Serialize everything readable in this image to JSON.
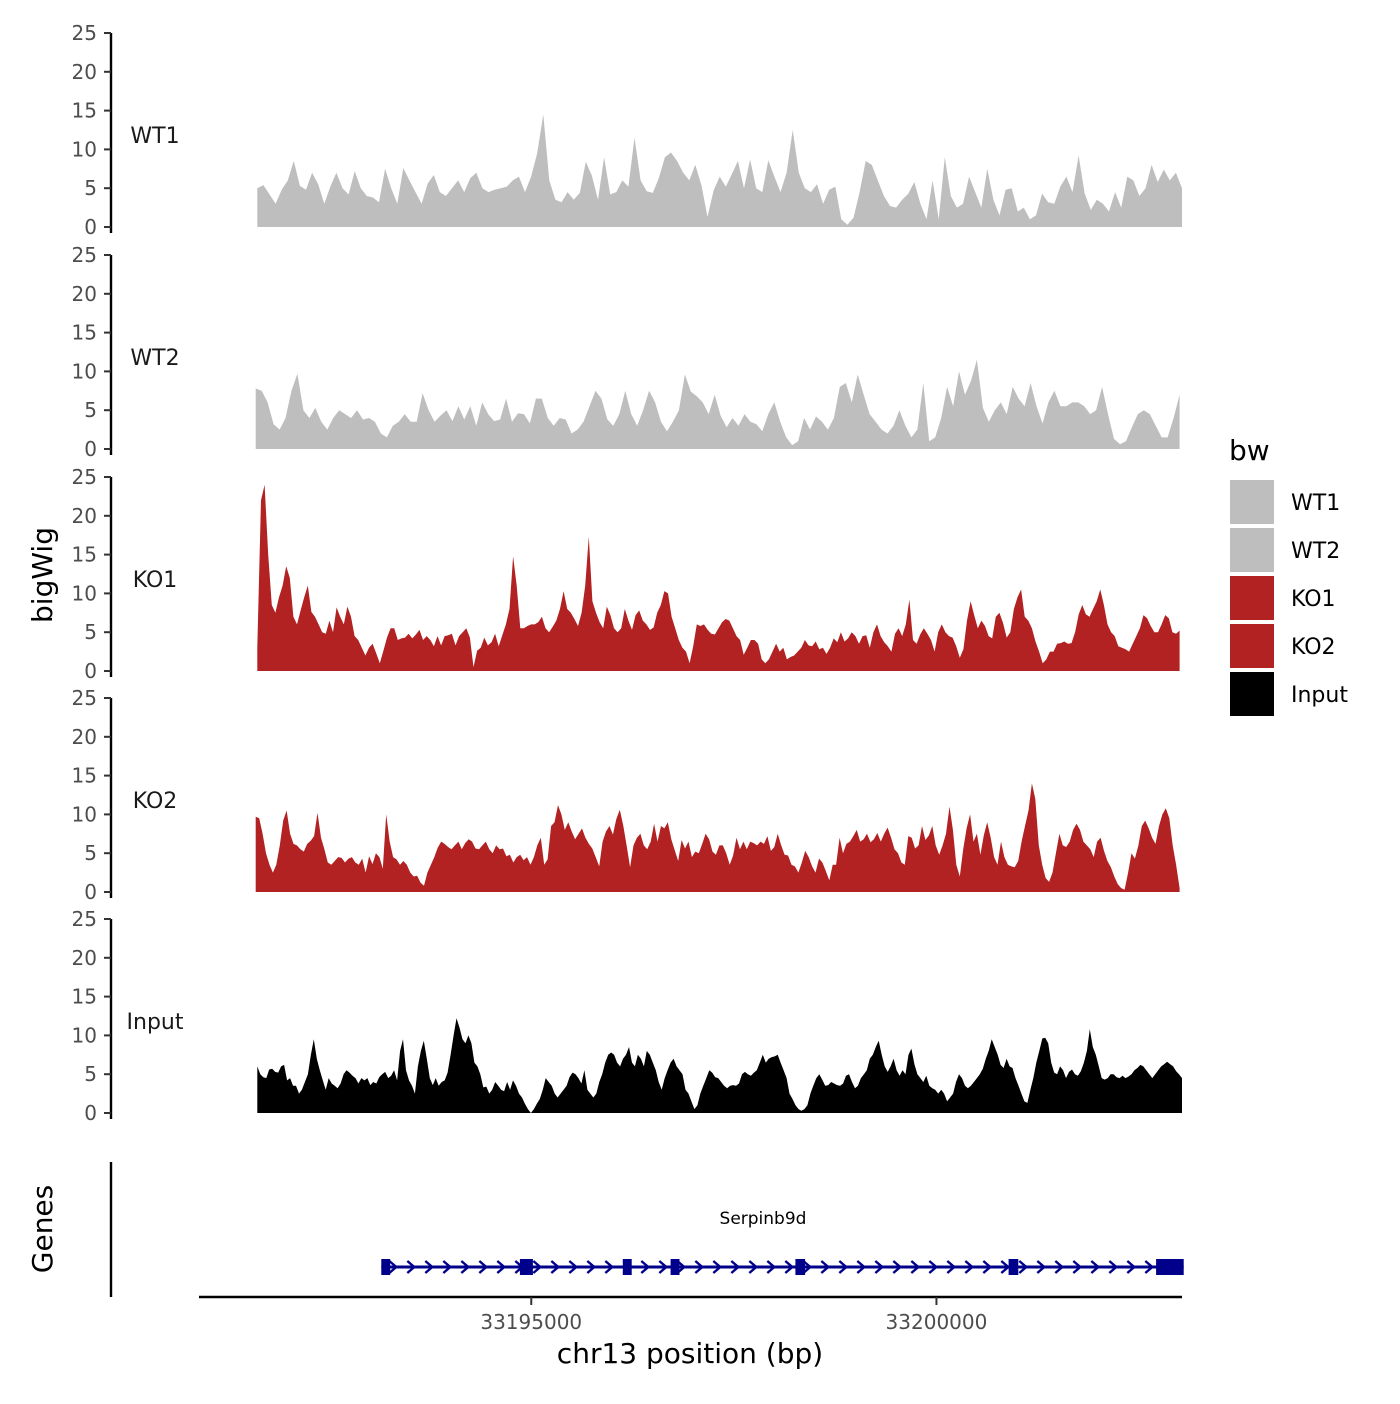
{
  "chart_data": {
    "type": "area",
    "ylabel": "bigWig",
    "xlabel": "chr13 position (bp)",
    "ylim": [
      0,
      25
    ],
    "y_ticks": [
      "0",
      "5",
      "10",
      "15",
      "20",
      "25"
    ],
    "xlim": [
      33190900,
      33203030
    ],
    "x_ticks": [
      {
        "value": 33195000,
        "label": "33195000"
      },
      {
        "value": 33200000,
        "label": "33200000"
      }
    ],
    "legend": {
      "title": "bw",
      "position": "right",
      "entries": [
        {
          "label": "WT1",
          "color": "#bebebe"
        },
        {
          "label": "WT2",
          "color": "#bebebe"
        },
        {
          "label": "KO1",
          "color": "#b22222"
        },
        {
          "label": "KO2",
          "color": "#b22222"
        },
        {
          "label": "Input",
          "color": "#000000"
        }
      ]
    },
    "tracks": [
      {
        "name": "WT1",
        "color": "#bebebe",
        "x_start": 33191620,
        "x_end": 33203030,
        "values": [
          5,
          5.4,
          4.2,
          3,
          4.8,
          6,
          8.5,
          5.3,
          4.8,
          7,
          5.5,
          3,
          5.2,
          7,
          5,
          4.2,
          7.2,
          5,
          4,
          3.8,
          3.2,
          7.5,
          5,
          3,
          7.6,
          6,
          4.5,
          3,
          5.6,
          6.7,
          4.5,
          4,
          5,
          6,
          4.5,
          6.3,
          7,
          5,
          4.5,
          4.8,
          5,
          5.2,
          6,
          6.5,
          4.5,
          6.5,
          9.5,
          14.5,
          6,
          3.5,
          3.2,
          4.5,
          3.5,
          4.4,
          8.4,
          6.6,
          3.5,
          9,
          4.2,
          4.5,
          6,
          5.2,
          11.5,
          6,
          4.6,
          4.4,
          6.3,
          9,
          9.6,
          8.5,
          7,
          6,
          8,
          5.4,
          1.3,
          4.7,
          6.5,
          5.2,
          6.8,
          8.5,
          5,
          8.7,
          5,
          4.5,
          8.6,
          6.5,
          4.5,
          7,
          12.5,
          7,
          5,
          4.5,
          5.5,
          3,
          4.8,
          5.2,
          1,
          0.3,
          1.2,
          4.5,
          8.5,
          8,
          6,
          4,
          2.7,
          2.5,
          3.5,
          4.3,
          5.8,
          3,
          1,
          6,
          1,
          9,
          4,
          2.5,
          3,
          6.5,
          4.5,
          2.5,
          7.5,
          3.5,
          1.5,
          4.8,
          5,
          2,
          2.5,
          1,
          1.5,
          4.3,
          3.2,
          3,
          5.2,
          6.5,
          4.5,
          9.2,
          4.3,
          2.2,
          3.5,
          3,
          2,
          4.5,
          2.5,
          6.5,
          6,
          4,
          5,
          8,
          5.8,
          7.4,
          6,
          7,
          5
        ]
      },
      {
        "name": "WT2",
        "color": "#bebebe",
        "x_start": 33191600,
        "x_end": 33203000,
        "values": [
          7.8,
          7.5,
          6,
          3.2,
          2.5,
          4,
          7.5,
          9.7,
          5,
          4,
          5.3,
          3.5,
          2.5,
          4,
          5,
          4.5,
          4,
          5,
          3.8,
          4,
          3.5,
          2,
          1.5,
          3,
          3.5,
          4.5,
          3.5,
          3.5,
          7.2,
          5,
          3.5,
          4.3,
          5,
          3.6,
          5.5,
          3.8,
          5.5,
          3,
          6,
          4.5,
          3.6,
          3.8,
          6.5,
          3.5,
          4.6,
          4.5,
          3.3,
          6.5,
          6.5,
          4,
          3,
          4,
          3.8,
          2,
          2.5,
          3.5,
          5.5,
          7.5,
          6.5,
          3.8,
          3,
          4.5,
          7.5,
          4.5,
          3,
          5,
          7.5,
          6,
          3.5,
          2.3,
          3.5,
          5,
          9.6,
          7.4,
          6.8,
          6,
          4.5,
          7,
          4.3,
          2.8,
          4,
          3,
          4.5,
          3.5,
          3.2,
          2.3,
          4.5,
          6,
          3.5,
          1.5,
          0.5,
          1,
          4,
          2.5,
          4.2,
          3.5,
          2.5,
          4,
          8,
          8.5,
          6,
          9.6,
          7,
          4.5,
          3.5,
          2.5,
          2,
          3,
          5,
          3,
          1.5,
          2.5,
          8.5,
          1,
          1.5,
          4,
          8,
          5.5,
          10,
          7,
          8.8,
          11.5,
          5.3,
          3.5,
          5,
          6,
          4.5,
          8,
          6.5,
          5.5,
          8.5,
          5.5,
          3.3,
          6,
          7.5,
          5.5,
          5.5,
          6,
          6,
          5.5,
          4.5,
          5,
          8,
          4.5,
          1.3,
          0.6,
          1,
          2.8,
          4.5,
          5,
          4.5,
          3,
          1.5,
          1.5,
          4,
          7
        ]
      },
      {
        "name": "KO1",
        "color": "#b22222",
        "x_start": 33191620,
        "x_end": 33203000,
        "values": [
          3,
          22,
          24,
          15,
          8.5,
          7.5,
          9.5,
          11,
          13.5,
          12,
          7,
          6,
          7.8,
          9.5,
          11,
          7.6,
          7,
          6,
          5,
          4.8,
          6.5,
          5,
          8.2,
          7,
          6,
          8.3,
          7,
          4.5,
          4,
          3,
          2,
          3,
          3.5,
          2.3,
          1,
          2.6,
          4.3,
          5.5,
          5.5,
          4,
          4.2,
          4.3,
          4.8,
          4.2,
          4.7,
          5.3,
          4,
          4.5,
          4,
          3.2,
          4.5,
          3.3,
          4.5,
          4.6,
          4.8,
          3.3,
          4.5,
          5,
          5.5,
          4.3,
          0.5,
          2.6,
          3,
          4.3,
          3.3,
          3.7,
          4.8,
          3.2,
          4.6,
          6,
          8,
          14.8,
          11,
          5.5,
          5.5,
          5.8,
          6,
          6,
          6.3,
          7,
          5.5,
          5,
          5.7,
          6.5,
          8,
          10.3,
          8,
          7.5,
          6.7,
          5.8,
          7.5,
          11,
          17.3,
          9,
          7.5,
          6.3,
          5.5,
          8.3,
          7.2,
          5.5,
          5,
          5.5,
          8,
          6.5,
          5.3,
          7.2,
          7.8,
          6.5,
          6,
          5.3,
          5.6,
          7.5,
          8.5,
          10.3,
          10,
          7,
          5.5,
          4,
          3,
          2.5,
          1,
          3.2,
          6,
          5.8,
          6,
          5.3,
          4.8,
          4.7,
          5.5,
          6.3,
          6.7,
          6.5,
          5.5,
          4.5,
          4,
          2.1,
          3,
          4,
          4,
          3.5,
          1.5,
          1,
          1.5,
          2.5,
          3.5,
          2.5,
          3,
          1.5,
          1.8,
          2,
          2.5,
          3,
          4,
          3.3,
          3.2,
          3.8,
          2.8,
          3,
          2.2,
          3,
          4.2,
          3.7,
          5,
          3.8,
          4.2,
          5,
          4.5,
          3.5,
          4.5,
          4.6,
          3,
          5,
          6,
          4.5,
          3.7,
          3.2,
          2.5,
          4.8,
          5.5,
          4.5,
          6,
          9.2,
          4,
          3.5,
          4.7,
          5.5,
          4.8,
          4,
          2.5,
          5,
          6,
          5,
          4.5,
          4.3,
          3.2,
          1.7,
          2.8,
          6.5,
          9,
          7.2,
          5.5,
          6.5,
          5.8,
          4.5,
          4.2,
          7,
          7.5,
          6.2,
          4.3,
          5,
          8,
          9.5,
          10.5,
          7,
          6.5,
          5.5,
          3.8,
          2.5,
          1,
          1.5,
          2.5,
          2.5,
          3.5,
          3.6,
          3.8,
          3.5,
          3.6,
          5,
          7.3,
          8.5,
          7.3,
          7,
          8,
          9,
          10.5,
          8.5,
          6,
          5,
          4.5,
          3.2,
          3,
          2.8,
          2.5,
          3.5,
          4.5,
          5.5,
          7.2,
          6.8,
          5.8,
          5,
          5,
          6,
          7.2,
          6.8,
          5,
          4.8,
          5.2
        ]
      },
      {
        "name": "KO2",
        "color": "#b22222",
        "x_start": 33191600,
        "x_end": 33203000,
        "values": [
          9.7,
          9.5,
          7.5,
          5,
          3.5,
          2.5,
          3.5,
          6,
          9.2,
          10.5,
          7.5,
          6.2,
          6,
          5.5,
          5.2,
          6.2,
          6.6,
          7.2,
          10.2,
          7,
          5.5,
          3.8,
          3.5,
          4,
          4.5,
          4.4,
          3.8,
          4.3,
          4.5,
          3.8,
          3.5,
          4.3,
          2.5,
          4.6,
          3.6,
          5,
          4.5,
          3,
          10,
          6.5,
          4.5,
          4.2,
          3.5,
          4,
          3.5,
          2.5,
          2,
          2.1,
          1.2,
          0.8,
          2.5,
          3.5,
          4.5,
          5.7,
          6.5,
          6.2,
          5.8,
          5.5,
          6,
          6.5,
          5.5,
          6.3,
          6.8,
          6.5,
          5.6,
          5.5,
          6,
          6.5,
          5.5,
          5,
          6,
          5.5,
          5.6,
          4.6,
          4.8,
          3.8,
          4.5,
          4.8,
          4.1,
          4.5,
          3.5,
          4.5,
          6,
          7,
          3.5,
          4.2,
          8.5,
          9,
          11.2,
          10,
          8,
          9,
          7.8,
          6.8,
          7.5,
          8.2,
          7,
          6.2,
          5.6,
          4.5,
          3.3,
          6.5,
          7.8,
          8.5,
          7.4,
          9.4,
          10.6,
          8.6,
          6,
          3.2,
          6,
          7,
          7.5,
          6,
          5.5,
          6.5,
          8.8,
          6.5,
          8.5,
          8.2,
          9,
          6.8,
          5.4,
          4,
          6.7,
          5.6,
          6.5,
          4.5,
          5.2,
          5,
          6.2,
          7.5,
          6.8,
          5.2,
          4.8,
          6,
          6,
          5,
          3.5,
          4.7,
          7,
          5.5,
          6.5,
          5.5,
          6.5,
          6.3,
          6,
          6.5,
          6.2,
          7.2,
          5.3,
          5.8,
          7.5,
          6,
          4.8,
          4.7,
          3.5,
          3.3,
          2.5,
          3.8,
          5.3,
          4.5,
          3.3,
          2.5,
          4.3,
          3.8,
          2.7,
          1.5,
          3.5,
          3.5,
          7,
          5,
          6.2,
          6.5,
          7.2,
          8,
          6.5,
          6.8,
          7.5,
          6.4,
          6.8,
          7.6,
          6.5,
          7.5,
          8.3,
          7,
          5.5,
          5,
          3.8,
          3.5,
          7.2,
          7,
          5.6,
          6,
          8.5,
          6.7,
          7.3,
          8.5,
          6,
          4.8,
          6,
          7.5,
          11,
          8,
          3.5,
          2,
          5.5,
          8.2,
          10,
          6.5,
          7.5,
          4.8,
          7.3,
          9,
          7,
          4.5,
          3.5,
          6.5,
          4.5,
          3.5,
          3.3,
          3.2,
          4,
          6.5,
          8.5,
          10.5,
          14,
          12,
          6,
          3.5,
          1.8,
          1.3,
          2.5,
          5,
          7.5,
          6,
          5.8,
          6.5,
          8,
          8.8,
          8,
          6.5,
          6,
          5.5,
          4.5,
          6.5,
          7,
          5.3,
          4,
          3.2,
          2,
          1,
          0.5,
          0.3,
          2.5,
          5,
          4.3,
          6,
          8.5,
          9.2,
          8.2,
          7,
          6.2,
          8.5,
          10,
          10.8,
          9.5,
          6,
          3.5,
          0.5
        ]
      },
      {
        "name": "Input",
        "color": "#000000",
        "x_start": 33191620,
        "x_end": 33203030,
        "values": [
          6,
          5,
          4.6,
          4.5,
          5.6,
          5.7,
          5.3,
          5.2,
          6,
          6.2,
          4.2,
          4.5,
          3.5,
          3.5,
          2.5,
          3,
          4,
          5,
          7.5,
          9.5,
          7,
          5.5,
          4.2,
          3,
          4.5,
          3.8,
          3.5,
          3.2,
          3.8,
          5,
          5.5,
          5.2,
          4.8,
          4.5,
          3.8,
          4.5,
          4.2,
          4.5,
          3.6,
          4,
          3.8,
          4.6,
          5,
          5.3,
          4.5,
          4.8,
          5.5,
          4.2,
          8,
          9.5,
          5.5,
          4.2,
          3.5,
          2.5,
          6,
          8,
          9.3,
          7,
          4.5,
          3.6,
          4.5,
          3.5,
          4,
          4.2,
          5.2,
          7.5,
          10,
          12.2,
          11,
          9.5,
          9,
          10,
          9,
          6.5,
          6,
          5,
          3.3,
          3.4,
          2.5,
          3,
          4,
          3.5,
          3,
          2.8,
          4,
          3,
          4.2,
          3.5,
          2.5,
          2,
          1.2,
          0.5,
          0,
          0.5,
          1.2,
          1.8,
          3,
          4.5,
          4,
          3.5,
          2.5,
          2,
          2.5,
          3,
          3.5,
          4.6,
          5.2,
          5,
          4.5,
          3.8,
          5.5,
          3,
          2.5,
          2,
          2.5,
          4,
          5,
          6.5,
          7.5,
          7.8,
          7.5,
          6.5,
          6,
          7,
          7.5,
          8.5,
          6.5,
          6,
          7.5,
          7,
          6,
          8,
          7.5,
          6.5,
          5.5,
          4,
          3,
          4.5,
          5.5,
          6.5,
          7,
          6,
          5.5,
          5,
          3,
          2.5,
          1.5,
          0.5,
          1,
          2.5,
          3.5,
          4.5,
          5.5,
          5.2,
          4.6,
          4.5,
          4,
          3.5,
          3.2,
          3.5,
          3.6,
          3.5,
          3.8,
          5,
          5.3,
          5,
          4.8,
          5.2,
          5.5,
          6.5,
          7.5,
          6.5,
          7,
          7.2,
          7.3,
          7.5,
          6.5,
          5.5,
          4.5,
          2.5,
          1.8,
          1,
          0.5,
          0.3,
          0.5,
          1,
          2.5,
          3.5,
          4.5,
          5,
          4.3,
          3.5,
          3.6,
          4,
          3.8,
          3.6,
          3.5,
          3.8,
          4.8,
          5,
          4,
          3.2,
          3.5,
          4.5,
          5,
          5.5,
          7,
          7.5,
          8.5,
          9.3,
          7.5,
          6,
          5.3,
          6,
          7,
          5.5,
          4.8,
          5.5,
          5,
          7.5,
          8.3,
          6.3,
          5,
          4.5,
          4,
          4.8,
          3.5,
          3.2,
          3,
          2.5,
          3,
          2.5,
          1.5,
          2,
          2.5,
          4,
          5,
          4.5,
          3.5,
          3.2,
          3.5,
          4,
          4.5,
          5,
          5.7,
          7,
          8,
          9.5,
          8.5,
          7.5,
          6.2,
          5.8,
          7,
          6,
          5.8,
          4.5,
          3.5,
          2.5,
          1.5,
          1.3,
          3,
          4.5,
          6.5,
          8,
          9.6,
          9.7,
          9,
          6.5,
          5.2,
          5,
          6,
          5.5,
          4.5,
          5.3,
          5.6,
          5,
          4.8,
          5.4,
          6.5,
          8,
          10.8,
          8.5,
          7.5,
          6,
          4.5,
          4.3,
          4.5,
          5,
          5,
          4.6,
          4.5,
          4.8,
          4.5,
          4.7,
          5,
          5.5,
          5.8,
          6.2,
          6,
          5.5,
          5,
          4.5,
          5,
          5.5,
          6,
          6.3,
          6.6,
          6.3,
          6,
          5.4,
          5,
          4.5
        ]
      }
    ],
    "genes_panel": {
      "ylabel": "Genes",
      "gene_name": "Serpinb9d",
      "color": "#00008b",
      "strand": "+",
      "start": 33193150,
      "end": 33203050,
      "exons": [
        [
          33193150,
          33193260
        ],
        [
          33194860,
          33195020
        ],
        [
          33196130,
          33196240
        ],
        [
          33196720,
          33196830
        ],
        [
          33198260,
          33198380
        ],
        [
          33200890,
          33201010
        ],
        [
          33202710,
          33203050
        ]
      ]
    }
  }
}
